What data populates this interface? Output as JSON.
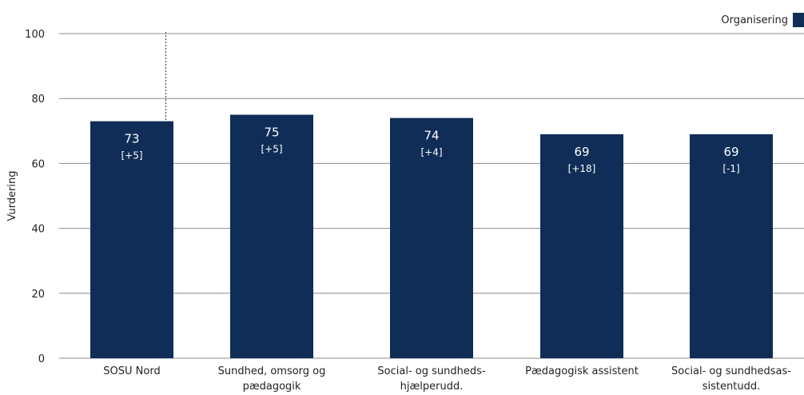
{
  "chart_data": {
    "type": "bar",
    "ylabel": "Vurdering",
    "ylim": [
      0,
      100
    ],
    "yticks": [
      0,
      20,
      40,
      60,
      80,
      100
    ],
    "grid": true,
    "legend_position": "top-right",
    "categories": [
      [
        "SOSU Nord"
      ],
      [
        "Sundhed, omsorg og",
        "pædagogik"
      ],
      [
        "Social- og sundheds-",
        "hjælperudd."
      ],
      [
        "Pædagogisk assistent"
      ],
      [
        "Social- og sundhedsas-",
        "sistentudd."
      ]
    ],
    "series": [
      {
        "name": "Organisering",
        "color": "#0f2d57",
        "values": [
          73,
          75,
          74,
          69,
          69
        ],
        "value_labels": [
          "73",
          "75",
          "74",
          "69",
          "69"
        ],
        "change_labels": [
          "[+5]",
          "[+5]",
          "[+4]",
          "[+18]",
          "[-1]"
        ]
      }
    ],
    "separator_after_index": 0
  }
}
